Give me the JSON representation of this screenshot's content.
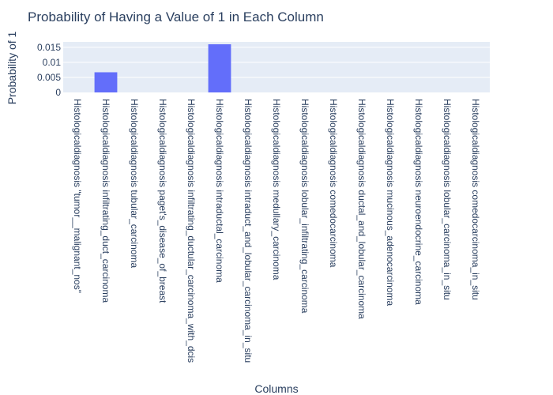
{
  "chart_data": {
    "type": "bar",
    "title": "Probability of Having a Value of 1 in Each Column",
    "xlabel": "Columns",
    "ylabel": "Probability of 1",
    "categories": [
      "Histologicaldiagnosis \"tumor__malignant_nos\"",
      "Histologicaldiagnosis infiltrating_duct_carcinoma",
      "Histologicaldiagnosis tubular_carcinoma",
      "Histologicaldiagnosis paget's_disease_of_breast",
      "Histologicaldiagnosis infiltrating_ductular_carcinoma_with_dcis",
      "Histologicaldiagnosis intraductal_carcinoma",
      "Histologicaldiagnosis intraduct_and_lobular_carcinoma_in_situ",
      "Histologicaldiagnosis medullary_carcinoma",
      "Histologicaldiagnosis lobular_infiltrating_carcinoma",
      "Histologicaldiagnosis comedocarcinoma",
      "Histologicaldiagnosis ductal_and_lobular_carcinoma",
      "Histologicaldiagnosis mucinous_adenocarcinoma",
      "Histologicaldiagnosis neuroendocrine_carcinoma",
      "Histologicaldiagnosis lobular_carcinoma_in_situ",
      "Histologicaldiagnosis comedocarcinoma_in_situ"
    ],
    "values": [
      0,
      0.0067,
      0,
      0,
      0,
      0.016,
      0,
      0,
      0,
      0,
      0,
      0,
      0,
      0,
      0
    ],
    "ylim": [
      0,
      0.0168
    ],
    "yticks": [
      0,
      0.005,
      0.01,
      0.015
    ],
    "ytick_labels": [
      "0",
      "0.005",
      "0.01",
      "0.015"
    ],
    "grid": true,
    "bar_color": "#636efa",
    "plot_bg": "#e5ecf6",
    "grid_color": "#ffffff",
    "text_color": "#2a3f5f"
  }
}
